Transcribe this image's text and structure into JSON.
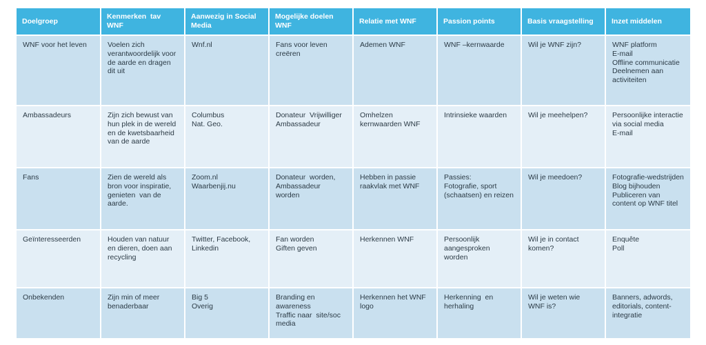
{
  "headers": [
    "Doelgroep",
    "Kenmerken  tav WNF",
    "Aanwezig in Social Media",
    "Mogelijke doelen WNF",
    "Relatie met WNF",
    "Passion points",
    "Basis vraagstelling",
    "Inzet middelen"
  ],
  "rows": [
    {
      "cells": [
        "WNF voor het leven",
        "Voelen zich verantwoordelijk voor de aarde en dragen dit uit",
        "Wnf.nl",
        "Fans voor leven creëren",
        "Ademen WNF",
        "WNF –kernwaarde",
        "Wil je WNF zijn?",
        "WNF platform\nE-mail\nOffline communicatie\nDeelnemen aan activiteiten"
      ]
    },
    {
      "cells": [
        "Ambassadeurs",
        "Zijn zich bewust van hun plek in de wereld en de kwetsbaarheid van de aarde",
        "Columbus\nNat. Geo.",
        "Donateur  Vrijwilliger Ambassadeur",
        "Omhelzen kernwaarden WNF",
        "Intrinsieke waarden",
        "Wil je meehelpen?",
        "Persoonlijke interactie via social media\nE-mail"
      ]
    },
    {
      "cells": [
        "Fans",
        "Zien de wereld als bron voor inspiratie, genieten  van de aarde.",
        "Zoom.nl\nWaarbenjij.nu",
        "Donateur  worden, Ambassadeur worden",
        "Hebben in passie raakvlak met WNF",
        "Passies:\nFotografie, sport (schaatsen) en reizen",
        "Wil je meedoen?",
        "Fotografie-wedstrijden\nBlog bijhouden\nPubliceren van content op WNF titel"
      ]
    },
    {
      "cells": [
        "Geïnteresseerden",
        "Houden van natuur en dieren, doen aan recycling",
        "Twitter, Facebook, Linkedin",
        "Fan worden\nGiften geven",
        "Herkennen WNF",
        "Persoonlijk aangesproken worden",
        "Wil je in contact komen?",
        "Enquête\nPoll"
      ]
    },
    {
      "cells": [
        "Onbekenden",
        "Zijn min of meer benaderbaar",
        "Big 5\nOverig",
        "Branding en awareness\nTraffic naar  site/soc media",
        "Herkennen het WNF logo",
        "Herkenning  en herhaling",
        "Wil je weten wie WNF is?",
        "Banners, adwords, editorials, content-integratie"
      ]
    }
  ]
}
